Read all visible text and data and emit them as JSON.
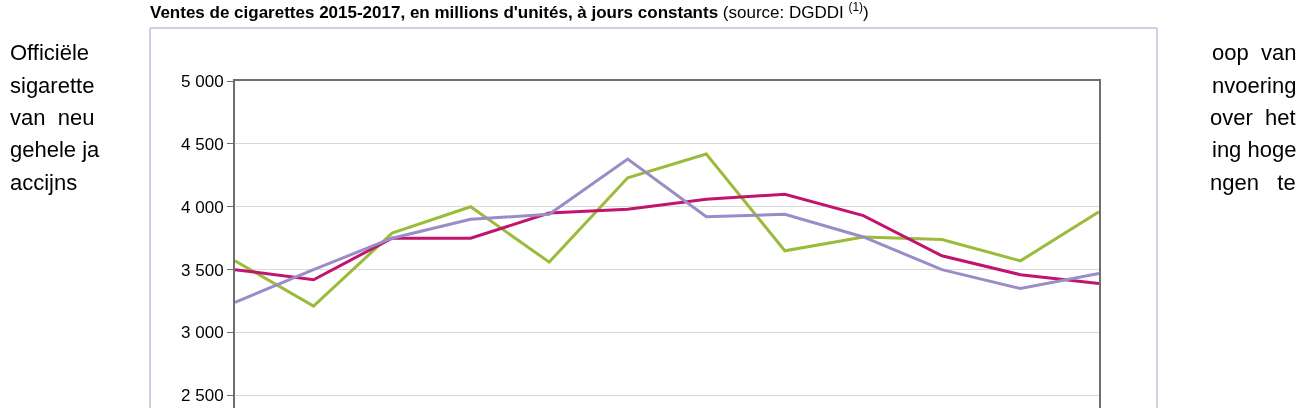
{
  "chart_data": {
    "type": "line",
    "title": "Ventes de cigarettes 2015-2017, en millions d'unités, à jours constants",
    "subtitle": "(source: DGDDI $^{(1)}$)",
    "categories": [
      null,
      null,
      null,
      null,
      null,
      null,
      null,
      null,
      null,
      null,
      null,
      null
    ],
    "series": [
      {
        "color": "#9bbb3b",
        "values": [
          3570,
          3210,
          3790,
          4000,
          3560,
          4230,
          4420,
          3650,
          3760,
          3740,
          3570,
          3960
        ]
      },
      {
        "color": "#c0146e",
        "values": [
          3500,
          3420,
          3750,
          3750,
          3950,
          3980,
          4060,
          4100,
          3930,
          3610,
          3460,
          3390
        ]
      },
      {
        "color": "#9a8cc6",
        "values": [
          3240,
          3500,
          3750,
          3900,
          3940,
          4380,
          3920,
          3940,
          3760,
          3500,
          3350,
          3470
        ]
      }
    ],
    "ylim": [
      2400,
      5000
    ],
    "yticks": [
      {
        "value": 2500,
        "label": "2 500"
      },
      {
        "value": 3000,
        "label": "3 000"
      },
      {
        "value": 3500,
        "label": "3 500"
      },
      {
        "value": 4000,
        "label": "4 000"
      },
      {
        "value": 4500,
        "label": "4 500"
      },
      {
        "value": 5000,
        "label": "5 000"
      }
    ],
    "grid": "y",
    "marker": "none",
    "line_style": "solid",
    "annotations": [
      "Officiële",
      "sigarette",
      "van  neu",
      "gehele ja",
      "accijns",
      "oop  van",
      "nvoering",
      "over  het",
      "ing hoge",
      "ngen   te"
    ]
  }
}
